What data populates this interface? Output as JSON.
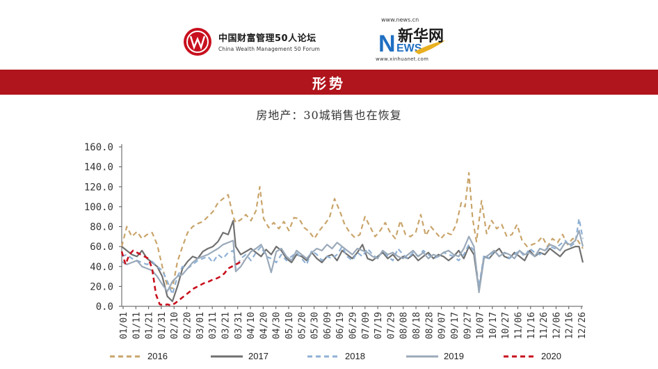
{
  "header": {
    "cwm_cn": "中国财富管理50人论坛",
    "cwm_en": "China Wealth Management 50 Forum",
    "xinhua_url_top": "www.news.cn",
    "xinhua_cn": "新华网",
    "xinhua_url_bottom": "www.xinhuanet.com"
  },
  "banner": {
    "title": "形势"
  },
  "chart_title": "房地产：30城销售也在恢复",
  "colors": {
    "s2016": "#c9a46a",
    "s2017": "#707070",
    "s2018": "#8fb0d4",
    "s2019": "#9aa9b9",
    "s2020": "#c8101e",
    "banner": "#b0141c"
  },
  "chart_data": {
    "type": "line",
    "title": "房地产：30城销售也在恢复",
    "xlabel": "",
    "ylabel": "",
    "ylim": [
      0,
      160
    ],
    "yticks": [
      "0.0",
      "20.0",
      "40.0",
      "60.0",
      "80.0",
      "100.0",
      "120.0",
      "140.0",
      "160.0"
    ],
    "xticks": [
      "01/01",
      "01/11",
      "01/21",
      "01/31",
      "02/10",
      "02/20",
      "03/01",
      "03/11",
      "03/21",
      "03/31",
      "04/10",
      "04/20",
      "04/30",
      "05/10",
      "05/20",
      "05/30",
      "06/09",
      "06/19",
      "06/29",
      "07/09",
      "07/19",
      "07/29",
      "08/08",
      "08/18",
      "08/28",
      "09/07",
      "09/17",
      "09/27",
      "10/07",
      "10/17",
      "10/27",
      "11/06",
      "11/16",
      "11/26",
      "12/06",
      "12/16",
      "12/26"
    ],
    "grid": false,
    "legend_position": "bottom",
    "x_domain": [
      1,
      365
    ],
    "series": [
      {
        "name": "2016",
        "color": "#c9a46a",
        "dash": "dashed",
        "x": [
          1,
          5,
          9,
          13,
          17,
          21,
          25,
          29,
          33,
          37,
          41,
          45,
          49,
          53,
          57,
          61,
          65,
          69,
          73,
          77,
          81,
          85,
          89,
          91,
          95,
          99,
          103,
          107,
          110,
          113,
          117,
          121,
          125,
          129,
          133,
          137,
          141,
          145,
          149,
          153,
          157,
          161,
          165,
          169,
          173,
          177,
          181,
          185,
          189,
          193,
          197,
          201,
          205,
          209,
          213,
          217,
          221,
          225,
          229,
          233,
          237,
          241,
          245,
          249,
          253,
          257,
          261,
          265,
          269,
          272,
          275,
          278,
          281,
          285,
          289,
          293,
          297,
          301,
          305,
          309,
          313,
          317,
          321,
          325,
          329,
          333,
          337,
          341,
          345,
          349,
          353,
          357,
          361,
          365
        ],
        "y": [
          60,
          80,
          70,
          75,
          68,
          72,
          74,
          62,
          40,
          20,
          18,
          45,
          60,
          74,
          80,
          83,
          85,
          90,
          95,
          104,
          108,
          112,
          90,
          84,
          87,
          92,
          86,
          96,
          120,
          88,
          79,
          84,
          78,
          85,
          76,
          89,
          88,
          79,
          75,
          68,
          76,
          82,
          89,
          108,
          96,
          82,
          74,
          69,
          72,
          90,
          80,
          70,
          76,
          84,
          74,
          68,
          86,
          72,
          70,
          74,
          92,
          71,
          80,
          74,
          68,
          74,
          72,
          82,
          104,
          100,
          134,
          88,
          65,
          106,
          73,
          86,
          78,
          82,
          70,
          72,
          82,
          66,
          60,
          62,
          64,
          70,
          60,
          68,
          64,
          72,
          62,
          68,
          66,
          58
        ]
      },
      {
        "name": "2017",
        "color": "#707070",
        "dash": "solid",
        "x": [
          1,
          5,
          9,
          13,
          17,
          21,
          25,
          29,
          33,
          37,
          41,
          45,
          49,
          53,
          57,
          61,
          65,
          69,
          73,
          77,
          81,
          85,
          89,
          91,
          95,
          99,
          103,
          107,
          111,
          115,
          119,
          123,
          127,
          131,
          135,
          139,
          143,
          147,
          151,
          155,
          159,
          163,
          167,
          171,
          175,
          179,
          183,
          187,
          191,
          195,
          199,
          203,
          207,
          211,
          215,
          219,
          223,
          227,
          231,
          235,
          239,
          243,
          247,
          251,
          255,
          259,
          263,
          267,
          271,
          275,
          279,
          283,
          287,
          291,
          295,
          299,
          303,
          307,
          311,
          315,
          319,
          323,
          327,
          331,
          335,
          339,
          343,
          347,
          351,
          355,
          359,
          362,
          365
        ],
        "y": [
          60,
          56,
          52,
          50,
          56,
          48,
          44,
          40,
          30,
          10,
          5,
          20,
          38,
          45,
          50,
          48,
          55,
          58,
          60,
          65,
          74,
          72,
          86,
          60,
          52,
          55,
          58,
          54,
          50,
          57,
          52,
          60,
          56,
          48,
          44,
          52,
          50,
          46,
          54,
          48,
          44,
          50,
          52,
          46,
          56,
          52,
          48,
          54,
          62,
          48,
          46,
          50,
          54,
          48,
          52,
          46,
          50,
          48,
          52,
          46,
          50,
          54,
          48,
          52,
          50,
          46,
          50,
          56,
          48,
          60,
          52,
          16,
          50,
          48,
          54,
          58,
          50,
          48,
          54,
          50,
          46,
          56,
          50,
          54,
          52,
          58,
          54,
          50,
          56,
          58,
          60,
          60,
          44
        ]
      },
      {
        "name": "2018",
        "color": "#8fb0d4",
        "dash": "dashed",
        "x": [
          1,
          5,
          9,
          13,
          17,
          21,
          25,
          29,
          33,
          37,
          41,
          45,
          49,
          53,
          57,
          61,
          65,
          69,
          73,
          77,
          81,
          85,
          89,
          91,
          95,
          99,
          103,
          107,
          111,
          115,
          119,
          123,
          127,
          131,
          135,
          139,
          143,
          147,
          151,
          155,
          159,
          163,
          167,
          171,
          175,
          179,
          183,
          187,
          191,
          195,
          199,
          203,
          207,
          211,
          215,
          219,
          223,
          227,
          231,
          235,
          239,
          243,
          247,
          251,
          255,
          259,
          263,
          267,
          271,
          275,
          279,
          283,
          287,
          291,
          295,
          299,
          303,
          307,
          311,
          315,
          319,
          323,
          327,
          331,
          335,
          339,
          343,
          347,
          351,
          355,
          359,
          362,
          365
        ],
        "y": [
          50,
          52,
          48,
          46,
          44,
          42,
          45,
          40,
          36,
          25,
          12,
          30,
          40,
          38,
          42,
          46,
          48,
          50,
          44,
          52,
          48,
          54,
          56,
          38,
          48,
          52,
          46,
          54,
          60,
          50,
          48,
          44,
          52,
          46,
          50,
          54,
          48,
          42,
          56,
          52,
          46,
          50,
          48,
          52,
          60,
          50,
          46,
          54,
          50,
          58,
          52,
          48,
          56,
          50,
          46,
          58,
          52,
          48,
          54,
          50,
          56,
          52,
          48,
          50,
          54,
          52,
          50,
          46,
          52,
          62,
          56,
          20,
          52,
          48,
          56,
          50,
          54,
          48,
          52,
          56,
          50,
          58,
          54,
          52,
          56,
          60,
          58,
          62,
          66,
          60,
          64,
          88,
          68
        ]
      },
      {
        "name": "2019",
        "color": "#9aa9b9",
        "dash": "solid",
        "x": [
          1,
          5,
          9,
          13,
          17,
          21,
          25,
          29,
          33,
          37,
          41,
          45,
          49,
          53,
          57,
          61,
          65,
          69,
          73,
          77,
          81,
          85,
          89,
          91,
          95,
          99,
          103,
          107,
          111,
          115,
          119,
          123,
          127,
          131,
          135,
          139,
          143,
          147,
          151,
          155,
          159,
          163,
          167,
          171,
          175,
          179,
          183,
          187,
          191,
          195,
          199,
          203,
          207,
          211,
          215,
          219,
          223,
          227,
          231,
          235,
          239,
          243,
          247,
          251,
          255,
          259,
          263,
          267,
          271,
          275,
          279,
          283,
          287,
          291,
          295,
          299,
          303,
          307,
          311,
          315,
          319,
          323,
          327,
          331,
          335,
          339,
          343,
          347,
          351,
          355,
          359,
          362,
          365
        ],
        "y": [
          45,
          42,
          44,
          46,
          40,
          38,
          36,
          30,
          22,
          15,
          25,
          30,
          32,
          38,
          44,
          48,
          50,
          52,
          55,
          58,
          62,
          64,
          66,
          35,
          40,
          48,
          55,
          58,
          62,
          52,
          34,
          55,
          58,
          50,
          46,
          56,
          52,
          48,
          54,
          58,
          56,
          62,
          58,
          64,
          60,
          56,
          52,
          58,
          56,
          54,
          50,
          48,
          56,
          52,
          54,
          50,
          48,
          52,
          56,
          50,
          54,
          48,
          52,
          50,
          54,
          56,
          52,
          50,
          58,
          70,
          60,
          14,
          48,
          52,
          56,
          50,
          54,
          52,
          48,
          56,
          52,
          54,
          50,
          58,
          56,
          62,
          60,
          56,
          64,
          62,
          66,
          76,
          60
        ]
      },
      {
        "name": "2020",
        "color": "#c8101e",
        "dash": "dashed",
        "x": [
          1,
          4,
          7,
          10,
          13,
          16,
          19,
          22,
          25,
          28,
          31,
          34,
          37,
          40,
          43,
          46,
          49,
          52,
          55,
          58,
          61,
          64,
          67,
          70,
          73,
          76,
          79,
          82,
          85,
          88,
          91,
          94,
          97
        ],
        "y": [
          55,
          42,
          52,
          56,
          54,
          52,
          50,
          48,
          38,
          12,
          2,
          1,
          2,
          1,
          3,
          6,
          9,
          12,
          15,
          18,
          20,
          22,
          24,
          25,
          27,
          28,
          30,
          33,
          38,
          40,
          42,
          44,
          46
        ]
      }
    ]
  }
}
